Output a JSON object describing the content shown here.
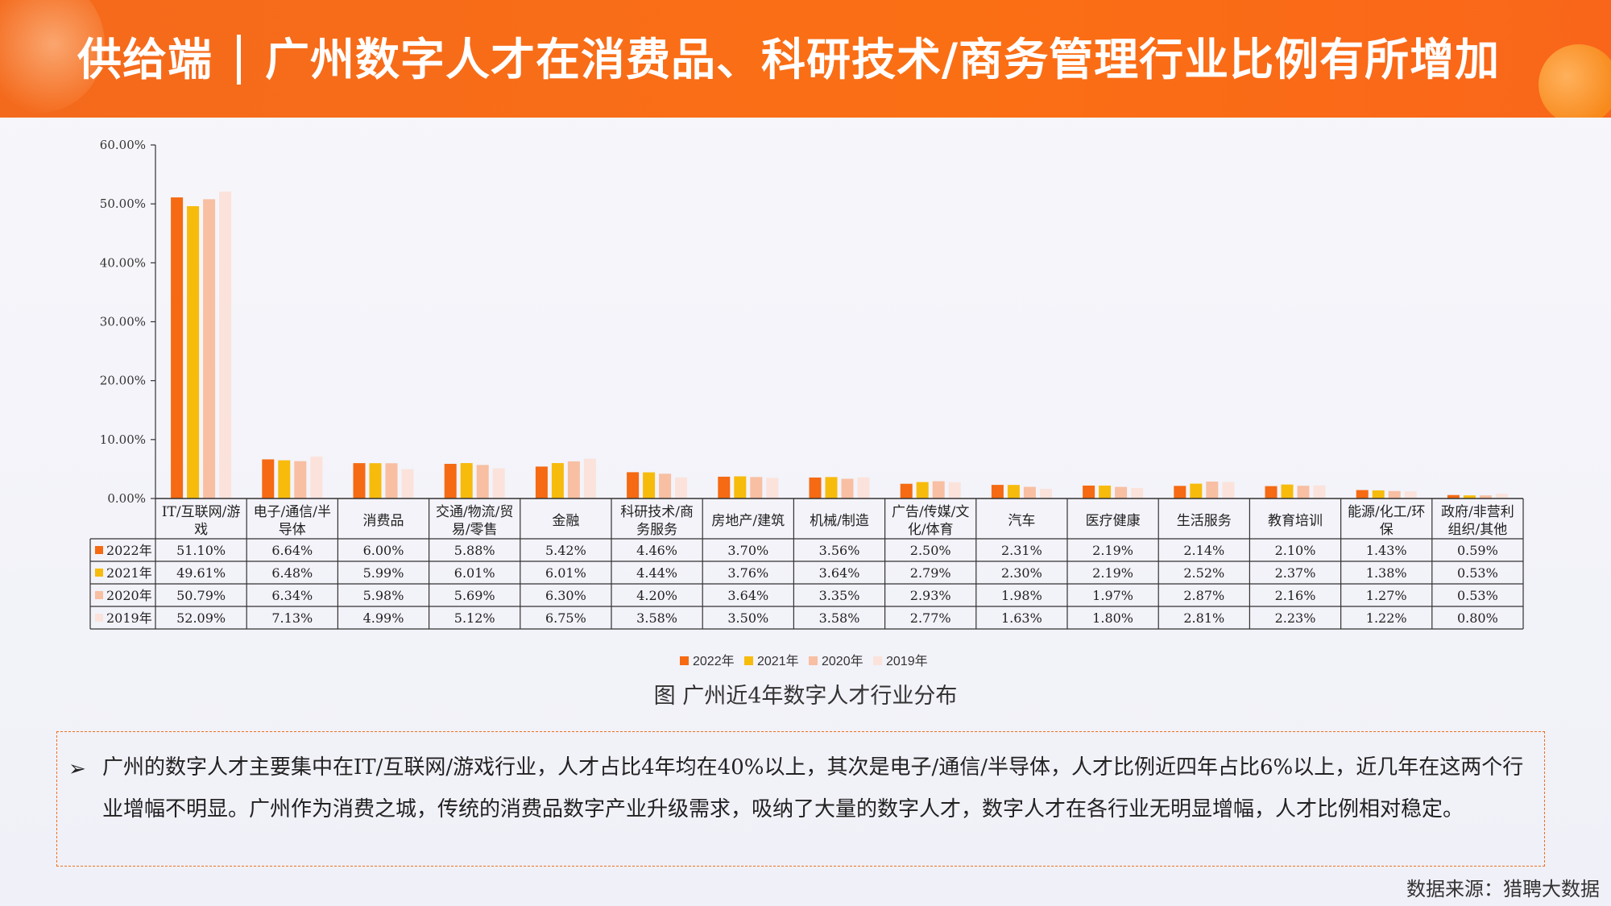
{
  "header": {
    "title_left": "供给端",
    "title_right": "广州数字人才在消费品、科研技术/商务管理行业比例有所增加"
  },
  "colors": {
    "header_bg": "#fb6f14",
    "series": [
      "#f56a12",
      "#f7bb0c",
      "#f8bfa2",
      "#fbe3dc"
    ]
  },
  "chart_data": {
    "type": "bar",
    "categories": [
      "IT/互联网/游戏",
      "电子/通信/半导体",
      "消费品",
      "交通/物流/贸易/零售",
      "金融",
      "科研技术/商务服务",
      "房地产/建筑",
      "机械/制造",
      "广告/传媒/文化/体育",
      "汽车",
      "医疗健康",
      "生活服务",
      "教育培训",
      "能源/化工/环保",
      "政府/非营利组织/其他"
    ],
    "category_lines": [
      [
        "IT/互联网/游",
        "戏"
      ],
      [
        "电子/通信/半",
        "导体"
      ],
      [
        "消费品"
      ],
      [
        "交通/物流/贸",
        "易/零售"
      ],
      [
        "金融"
      ],
      [
        "科研技术/商",
        "务服务"
      ],
      [
        "房地产/建筑"
      ],
      [
        "机械/制造"
      ],
      [
        "广告/传媒/文",
        "化/体育"
      ],
      [
        "汽车"
      ],
      [
        "医疗健康"
      ],
      [
        "生活服务"
      ],
      [
        "教育培训"
      ],
      [
        "能源/化工/环",
        "保"
      ],
      [
        "政府/非营利",
        "组织/其他"
      ]
    ],
    "series": [
      {
        "name": "2022年",
        "values": [
          51.1,
          6.64,
          6.0,
          5.88,
          5.42,
          4.46,
          3.7,
          3.56,
          2.5,
          2.31,
          2.19,
          2.14,
          2.1,
          1.43,
          0.59
        ]
      },
      {
        "name": "2021年",
        "values": [
          49.61,
          6.48,
          5.99,
          6.01,
          6.01,
          4.44,
          3.76,
          3.64,
          2.79,
          2.3,
          2.19,
          2.52,
          2.37,
          1.38,
          0.53
        ]
      },
      {
        "name": "2020年",
        "values": [
          50.79,
          6.34,
          5.98,
          5.69,
          6.3,
          4.2,
          3.64,
          3.35,
          2.93,
          1.98,
          1.97,
          2.87,
          2.16,
          1.27,
          0.53
        ]
      },
      {
        "name": "2019年",
        "values": [
          52.09,
          7.13,
          4.99,
          5.12,
          6.75,
          3.58,
          3.5,
          3.58,
          2.77,
          1.63,
          1.8,
          2.81,
          2.23,
          1.22,
          0.8
        ]
      }
    ],
    "table_values": [
      [
        "51.10%",
        "6.64%",
        "6.00%",
        "5.88%",
        "5.42%",
        "4.46%",
        "3.70%",
        "3.56%",
        "2.50%",
        "2.31%",
        "2.19%",
        "2.14%",
        "2.10%",
        "1.43%",
        "0.59%"
      ],
      [
        "49.61%",
        "6.48%",
        "5.99%",
        "6.01%",
        "6.01%",
        "4.44%",
        "3.76%",
        "3.64%",
        "2.79%",
        "2.30%",
        "2.19%",
        "2.52%",
        "2.37%",
        "1.38%",
        "0.53%"
      ],
      [
        "50.79%",
        "6.34%",
        "5.98%",
        "5.69%",
        "6.30%",
        "4.20%",
        "3.64%",
        "3.35%",
        "2.93%",
        "1.98%",
        "1.97%",
        "2.87%",
        "2.16%",
        "1.27%",
        "0.53%"
      ],
      [
        "52.09%",
        "7.13%",
        "4.99%",
        "5.12%",
        "6.75%",
        "3.58%",
        "3.50%",
        "3.58%",
        "2.77%",
        "1.63%",
        "1.80%",
        "2.81%",
        "2.23%",
        "1.22%",
        "0.80%"
      ]
    ],
    "yticks": [
      "0.00%",
      "10.00%",
      "20.00%",
      "30.00%",
      "40.00%",
      "50.00%",
      "60.00%"
    ],
    "ylim": [
      0,
      60
    ],
    "legend_position": "bottom",
    "has_data_table": true
  },
  "caption": "图 广州近4年数字人才行业分布",
  "note": {
    "bullet": "➢",
    "text": "广州的数字人才主要集中在IT/互联网/游戏行业，人才占比4年均在40%以上，其次是电子/通信/半导体，人才比例近四年占比6%以上，近几年在这两个行业增幅不明显。广州作为消费之城，传统的消费品数字产业升级需求，吸纳了大量的数字人才，数字人才在各行业无明显增幅，人才比例相对稳定。"
  },
  "source": "数据来源：猎聘大数据"
}
